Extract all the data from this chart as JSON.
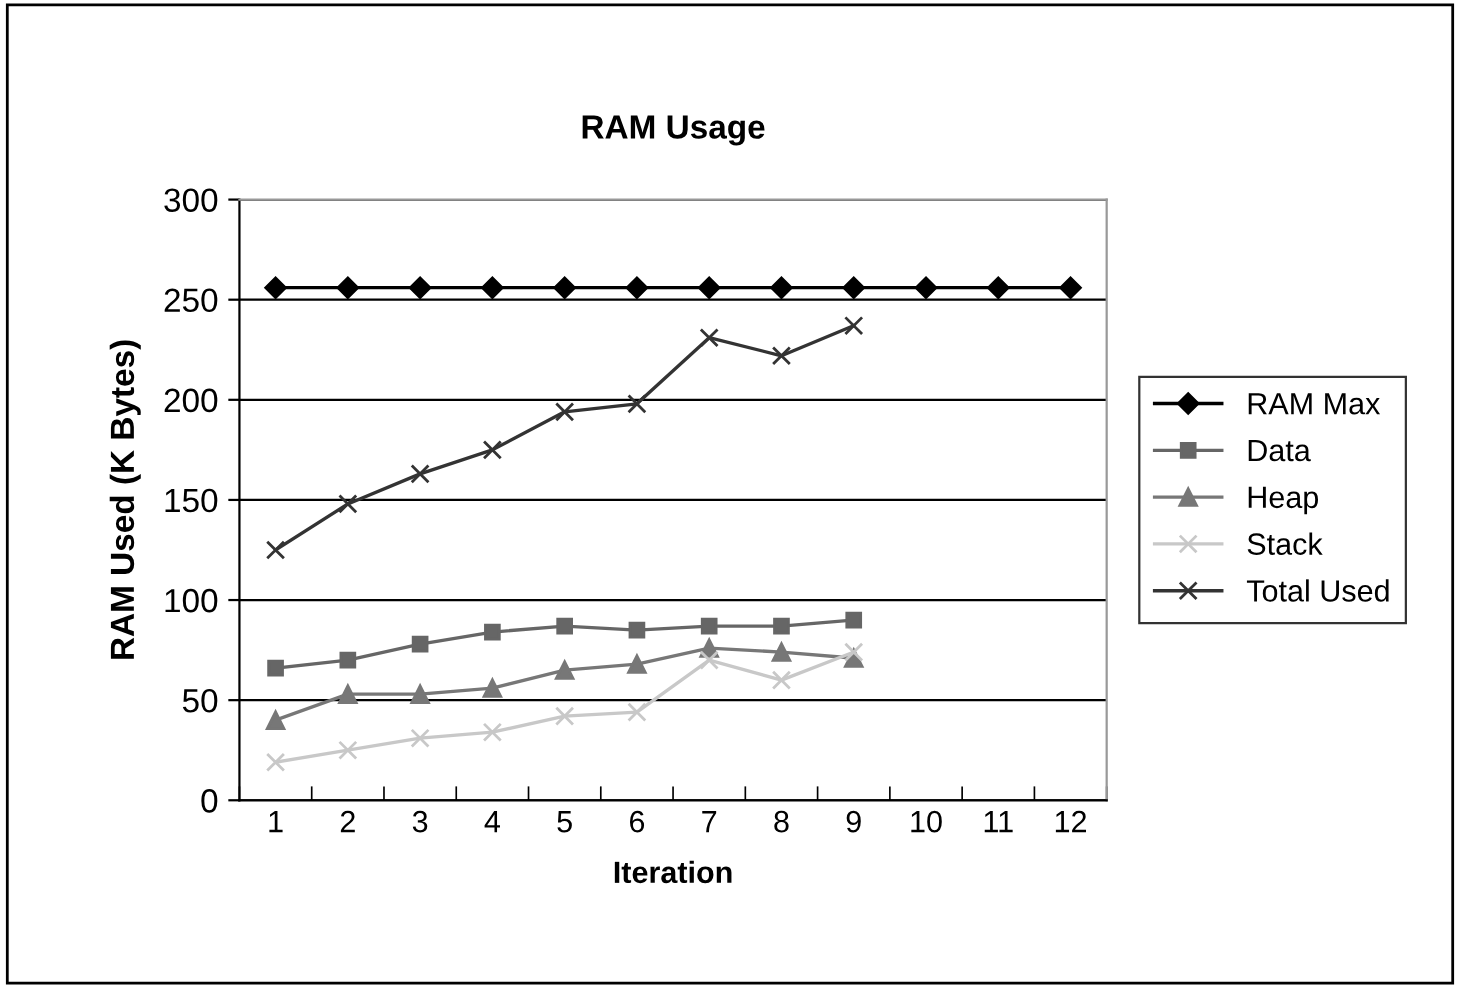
{
  "chart_data": {
    "type": "line",
    "title": "RAM Usage",
    "xlabel": "Iteration",
    "ylabel": "RAM Used (K Bytes)",
    "categories": [
      "1",
      "2",
      "3",
      "4",
      "5",
      "6",
      "7",
      "8",
      "9",
      "10",
      "11",
      "12"
    ],
    "series": [
      {
        "name": "RAM Max",
        "color": "#000000",
        "marker": "diamond",
        "values": [
          256,
          256,
          256,
          256,
          256,
          256,
          256,
          256,
          256,
          256,
          256,
          256
        ]
      },
      {
        "name": "Data",
        "color": "#666666",
        "marker": "square",
        "values": [
          66,
          70,
          78,
          84,
          87,
          85,
          87,
          87,
          90,
          null,
          null,
          null
        ]
      },
      {
        "name": "Heap",
        "color": "#777777",
        "marker": "triangle",
        "values": [
          40,
          53,
          53,
          56,
          65,
          68,
          76,
          74,
          71,
          null,
          null,
          null
        ]
      },
      {
        "name": "Stack",
        "color": "#c8c8c8",
        "marker": "cross",
        "values": [
          19,
          25,
          31,
          34,
          42,
          44,
          70,
          60,
          74,
          null,
          null,
          null
        ]
      },
      {
        "name": "Total Used",
        "color": "#333333",
        "marker": "cross",
        "values": [
          125,
          148,
          163,
          175,
          194,
          198,
          231,
          222,
          237,
          null,
          null,
          null
        ]
      }
    ],
    "ylim": [
      0,
      300
    ],
    "yticks": [
      0,
      50,
      100,
      150,
      200,
      250,
      300
    ],
    "grid": "y",
    "legend": "right"
  }
}
